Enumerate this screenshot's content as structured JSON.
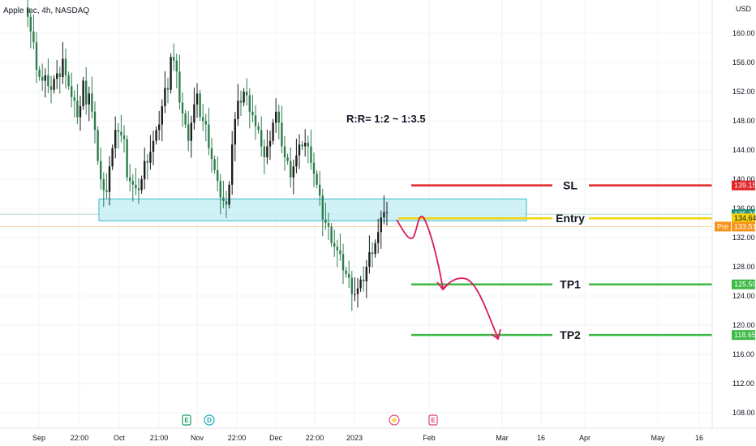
{
  "header": {
    "title": "Apple Inc, 4h, NASDAQ",
    "currency": "USD"
  },
  "chart_data": {
    "type": "candlestick",
    "symbol": "Apple Inc",
    "interval": "4h",
    "exchange": "NASDAQ",
    "ylim": [
      106,
      164
    ],
    "y_ticks": [
      "160.00",
      "156.00",
      "152.00",
      "148.00",
      "144.00",
      "140.00",
      "136.00",
      "132.00",
      "128.00",
      "124.00",
      "120.00",
      "116.00",
      "112.00",
      "108.00"
    ],
    "x_ticks": [
      "Sep",
      "22:00",
      "Oct",
      "21:00",
      "Nov",
      "22:00",
      "Dec",
      "22:00",
      "2023",
      "Feb",
      "Mar",
      "16",
      "Apr",
      "May",
      "16"
    ],
    "price_path": [
      163.5,
      162.5,
      160,
      158,
      155.5,
      154,
      153,
      155,
      153,
      152,
      153,
      155,
      154,
      156,
      155,
      153,
      151,
      150,
      149,
      150,
      153,
      151,
      152,
      149,
      146,
      143,
      140,
      138,
      139,
      142,
      144,
      146,
      147,
      146,
      145,
      141,
      140,
      139,
      138,
      139,
      140,
      142,
      143,
      144,
      145,
      146,
      148,
      150,
      152,
      153,
      157,
      156,
      154,
      151,
      149,
      147,
      146,
      148,
      150,
      151,
      149,
      148,
      147,
      145,
      143,
      141,
      139,
      138,
      137,
      136,
      140,
      145,
      148,
      150,
      151,
      152,
      151,
      150,
      149,
      147,
      146,
      145,
      143,
      144,
      146,
      148,
      149,
      147,
      145,
      143,
      142,
      141,
      142,
      143,
      144,
      145,
      145,
      144,
      143,
      141,
      139,
      137,
      135,
      134,
      133,
      132,
      131,
      130,
      129,
      128,
      127,
      126,
      125,
      124.5,
      124.8,
      125.5,
      126.5,
      128,
      129.5,
      130.5,
      131.5,
      132.5,
      134,
      136,
      135.5
    ],
    "zone": {
      "top": 137.3,
      "bottom": 134.3
    },
    "levels": [
      {
        "label": "SL",
        "value": 139.15,
        "price_tag": "139.15",
        "color": "#e32428"
      },
      {
        "label": "Entry",
        "value": 134.64,
        "price_tag": "134.64",
        "color": "#f2d509"
      },
      {
        "label": "TP1",
        "value": 125.59,
        "price_tag": "125.59",
        "color": "#3dba45"
      },
      {
        "label": "TP2",
        "value": 118.65,
        "price_tag": "118.65",
        "color": "#3dba45"
      }
    ],
    "last_price": {
      "value": 135.21,
      "price_tag": "135.21",
      "color": "#1f8f74"
    },
    "premarket": {
      "label": "Pre",
      "value": 133.51,
      "price_tag": "133.51",
      "color": "#f7931a"
    },
    "annotation": "R:R= 1:2 ~ 1:3.5",
    "events": [
      {
        "label": "E",
        "color": "#1a9e5e"
      },
      {
        "label": "D",
        "color": "#1aa7b5"
      },
      {
        "label": "⚡",
        "color": "#e0457b"
      },
      {
        "label": "E",
        "color": "#e0457b"
      }
    ],
    "colors": {
      "up": "#1e1e1e",
      "down": "#2e7d4f",
      "arrow": "#d81b60",
      "zone_fill": "#c8f0f6",
      "zone_border": "#37b8d0"
    }
  }
}
